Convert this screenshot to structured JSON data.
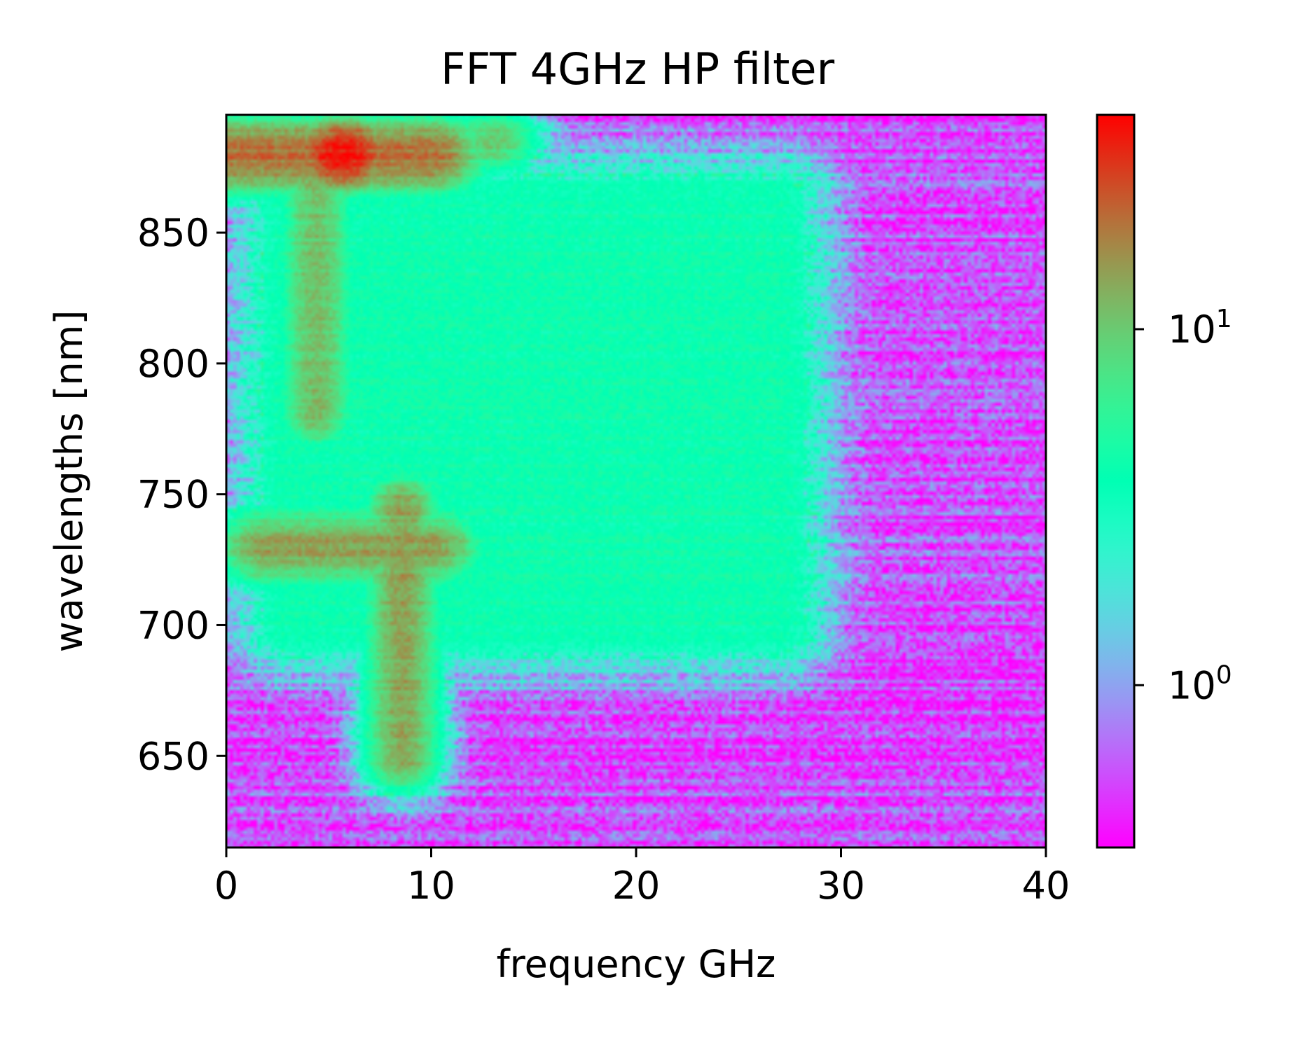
{
  "chart_data": {
    "type": "heatmap",
    "title": "FFT 4GHz HP filter",
    "xlabel": "frequency GHz",
    "ylabel": "wavelengths [nm]",
    "xlim": [
      0,
      40
    ],
    "ylim": [
      615,
      895
    ],
    "x_ticks": [
      0,
      10,
      20,
      30,
      40
    ],
    "y_ticks": [
      650,
      700,
      750,
      800,
      850
    ],
    "colormap": "rainbow",
    "colorbar": {
      "scale": "log",
      "range": [
        0.35,
        40
      ],
      "ticks": [
        {
          "value": 1,
          "label_base": "10",
          "label_exp": "0"
        },
        {
          "value": 10,
          "label_base": "10",
          "label_exp": "1"
        }
      ]
    },
    "features": [
      {
        "desc": "hot spot",
        "x": 5.7,
        "y": 880,
        "value": 38
      },
      {
        "desc": "horizontal band",
        "x_range": [
          0,
          10
        ],
        "y": 880,
        "value": 20
      },
      {
        "desc": "horizontal band",
        "x_range": [
          2,
          10
        ],
        "y": 730,
        "value": 14
      },
      {
        "desc": "vertical ridge",
        "x": 4.4,
        "y_range": [
          780,
          870
        ],
        "value": 11
      },
      {
        "desc": "vertical ridge",
        "x": 8.6,
        "y_range": [
          650,
          745
        ],
        "value": 14
      },
      {
        "desc": "secondary spot",
        "x": 13,
        "y": 885,
        "value": 10
      },
      {
        "desc": "broad plateau",
        "x_range": [
          3,
          27
        ],
        "y_range": [
          700,
          860
        ],
        "value": 4
      },
      {
        "desc": "noise floor",
        "x_range": [
          27,
          40
        ],
        "y_range": [
          615,
          895
        ],
        "value": 0.8
      }
    ]
  }
}
